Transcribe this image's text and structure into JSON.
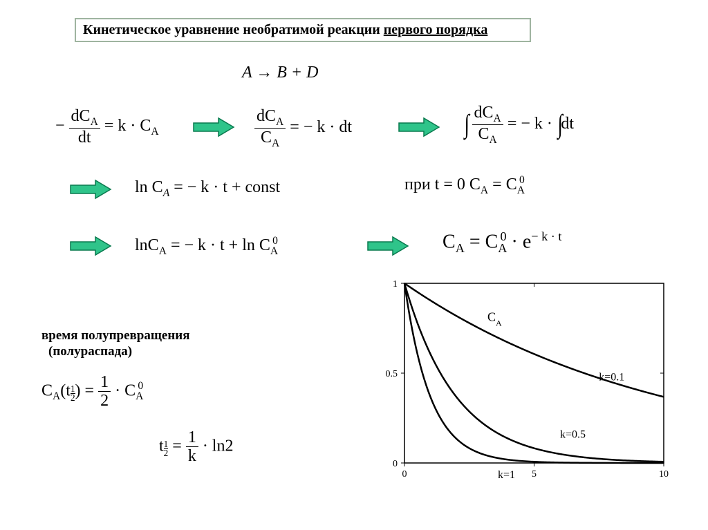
{
  "title": {
    "prefix": "Кинетическое уравнение необратимой реакции ",
    "underlined": "первого порядка"
  },
  "equations": {
    "reaction": "A → B + D",
    "rate_lhs_minus": "−",
    "frac_dCA": "dC",
    "frac_dt": "dt",
    "eq_kCA_rhs": "= k · C",
    "sep_eq": "= − k · dt",
    "int_eq_rhs": "= − k · ",
    "int_dt": "dt",
    "ln_eq": "ln C",
    "ln_rhs": " = − k · t + const",
    "ln_eq2_rhs": " = − k · t + ln C",
    "init_cond_prefix": "при   t = 0     C",
    "init_cond_eq": " = C",
    "exp_form_lhs": "C",
    "exp_form_mid": " = C",
    "exp_form_exp": " · e",
    "exp_power": "− k · t",
    "half_life_heading1": "время полупревращения",
    "half_life_heading2": "(полураспада)",
    "half_life_eq_lhs": "C",
    "half_life_eq_paren": "(t",
    "half_life_eq_close": ") = ",
    "half_life_frac_num": "1",
    "half_life_frac_den": "2",
    "half_life_rhs": " · C",
    "t_half_lhs": "t",
    "t_half_rhs": " · ln2",
    "t_half_frac_num": "1",
    "t_half_frac_den": "k"
  },
  "chart": {
    "type": "line",
    "xlim": [
      0,
      10
    ],
    "ylim": [
      0,
      1
    ],
    "xticks": [
      0,
      5,
      10
    ],
    "yticks": [
      0,
      0.5,
      1
    ],
    "background_color": "#ffffff",
    "axis_color": "#000000",
    "line_color": "#000000",
    "line_width": 2.5,
    "series": [
      {
        "k": 0.1,
        "label": "k=0.1"
      },
      {
        "k": 0.5,
        "label": "k=0.5"
      },
      {
        "k": 1.0,
        "label": "k=1"
      }
    ],
    "series_label_CA": "C",
    "series_label_A": "A"
  },
  "arrow_style": {
    "fill": "#2fc48a",
    "stroke": "#0a7a4f",
    "stroke_width": 1.5
  }
}
